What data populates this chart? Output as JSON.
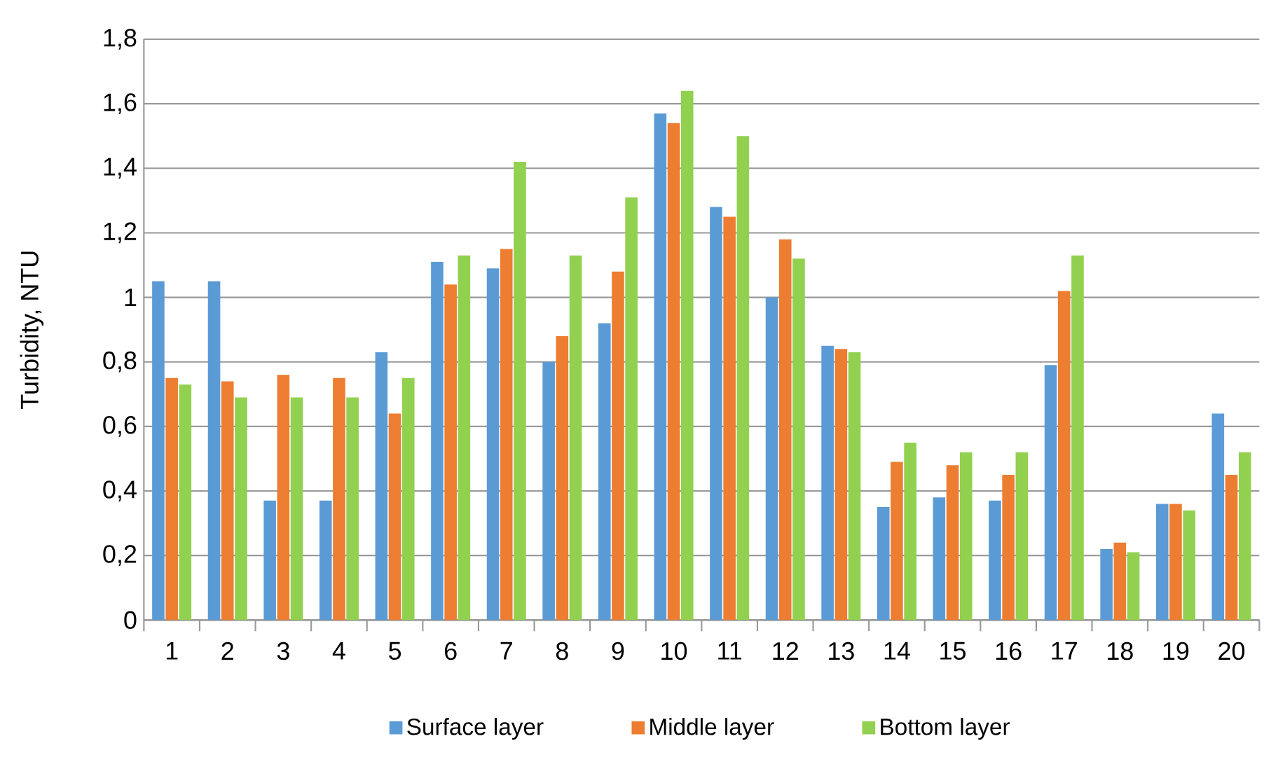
{
  "chart_data": {
    "type": "bar",
    "ylabel": "Turbidity, NTU",
    "categories": [
      "1",
      "2",
      "3",
      "4",
      "5",
      "6",
      "7",
      "8",
      "9",
      "10",
      "11",
      "12",
      "13",
      "14",
      "15",
      "16",
      "17",
      "18",
      "19",
      "20"
    ],
    "series": [
      {
        "name": "Surface layer",
        "color": "#5b9bd5",
        "values": [
          1.05,
          1.05,
          0.37,
          0.37,
          0.83,
          1.11,
          1.09,
          0.8,
          0.92,
          1.57,
          1.28,
          1.0,
          0.85,
          0.35,
          0.38,
          0.37,
          0.79,
          0.22,
          0.36,
          0.64
        ]
      },
      {
        "name": "Middle layer",
        "color": "#ed7d31",
        "values": [
          0.75,
          0.74,
          0.76,
          0.75,
          0.64,
          1.04,
          1.15,
          0.88,
          1.08,
          1.54,
          1.25,
          1.18,
          0.84,
          0.49,
          0.48,
          0.45,
          1.02,
          0.24,
          0.36,
          0.45
        ]
      },
      {
        "name": "Bottom layer",
        "color": "#92d050",
        "values": [
          0.73,
          0.69,
          0.69,
          0.69,
          0.75,
          1.13,
          1.42,
          1.13,
          1.31,
          1.64,
          1.5,
          1.12,
          0.83,
          0.55,
          0.52,
          0.52,
          1.13,
          0.21,
          0.34,
          0.52
        ]
      }
    ],
    "ylim": [
      0,
      1.8
    ],
    "yticks": [
      0,
      {
        "value": 0.2,
        "label": "0,2"
      },
      {
        "value": 0.4,
        "label": "0,4"
      },
      {
        "value": 0.6,
        "label": "0,6"
      },
      {
        "value": 0.8,
        "label": "0,8"
      },
      1,
      {
        "value": 1.2,
        "label": "1,2"
      },
      {
        "value": 1.4,
        "label": "1,4"
      },
      {
        "value": 1.6,
        "label": "1,6"
      },
      {
        "value": 1.8,
        "label": "1,8"
      }
    ],
    "grid": "y",
    "legend": "bottom"
  }
}
